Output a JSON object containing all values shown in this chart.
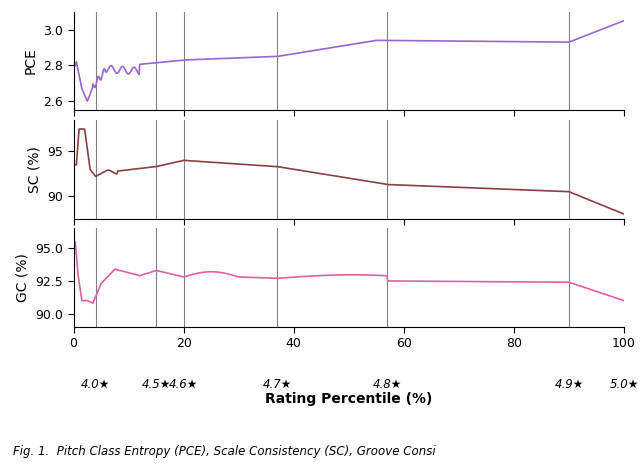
{
  "pce_color": "#9966CC",
  "sc_color": "#8B4040",
  "gc_color": "#E060A0",
  "vline_color": "#808080",
  "vline_positions": [
    4,
    15,
    20,
    37,
    57,
    90
  ],
  "xlabel": "Rating Percentile (%)",
  "pce_ylabel": "PCE",
  "sc_ylabel": "SC (%)",
  "gc_ylabel": "GC (%)",
  "pce_ylim": [
    2.55,
    3.1
  ],
  "pce_yticks": [
    2.6,
    2.8,
    3.0
  ],
  "sc_ylim": [
    87.5,
    98.5
  ],
  "sc_yticks": [
    90,
    95
  ],
  "gc_ylim": [
    89.0,
    96.5
  ],
  "gc_yticks": [
    90.0,
    92.5,
    95.0
  ],
  "xticks": [
    0,
    20,
    40,
    60,
    80,
    100
  ],
  "rating_annotations": [
    {
      "x": 4,
      "label": "4.0★"
    },
    {
      "x": 15,
      "label": "4.5★"
    },
    {
      "x": 20,
      "label": "4.6★"
    },
    {
      "x": 37,
      "label": "4.7★"
    },
    {
      "x": 57,
      "label": "4.8★"
    },
    {
      "x": 90,
      "label": "4.9★"
    },
    {
      "x": 100,
      "label": "5.0★"
    }
  ],
  "annotation_fontsize": 8.5,
  "axis_label_fontsize": 10,
  "tick_label_fontsize": 9,
  "caption": "Fig. 1.  Pitch Class Entropy (PCE), Scale Consistency (SC), Groove Consi"
}
